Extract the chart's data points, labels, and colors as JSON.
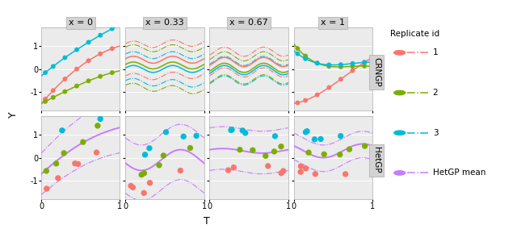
{
  "col_labels": [
    "x = 0",
    "x = 0.33",
    "x = 0.67",
    "x = 1"
  ],
  "row_labels": [
    "CRNGP",
    "HetGP"
  ],
  "xlabel": "T",
  "ylabel": "Y",
  "colors": {
    "rep1": "#F8766D",
    "rep2": "#7CAE00",
    "rep3": "#00BCD8",
    "hetgp": "#C77CFF"
  },
  "legend_labels": [
    "1",
    "2",
    "3",
    "HetGP mean"
  ],
  "background_color": "#EBEBEB",
  "grid_color": "#FFFFFF",
  "panel_label_bg": "#D3D3D3",
  "ylim": [
    -1.8,
    1.8
  ],
  "xlim": [
    0,
    1
  ],
  "yticks": [
    -1,
    0,
    1
  ],
  "xticks": [
    0,
    1
  ],
  "figsize": [
    6.4,
    2.84
  ],
  "dpi": 100
}
